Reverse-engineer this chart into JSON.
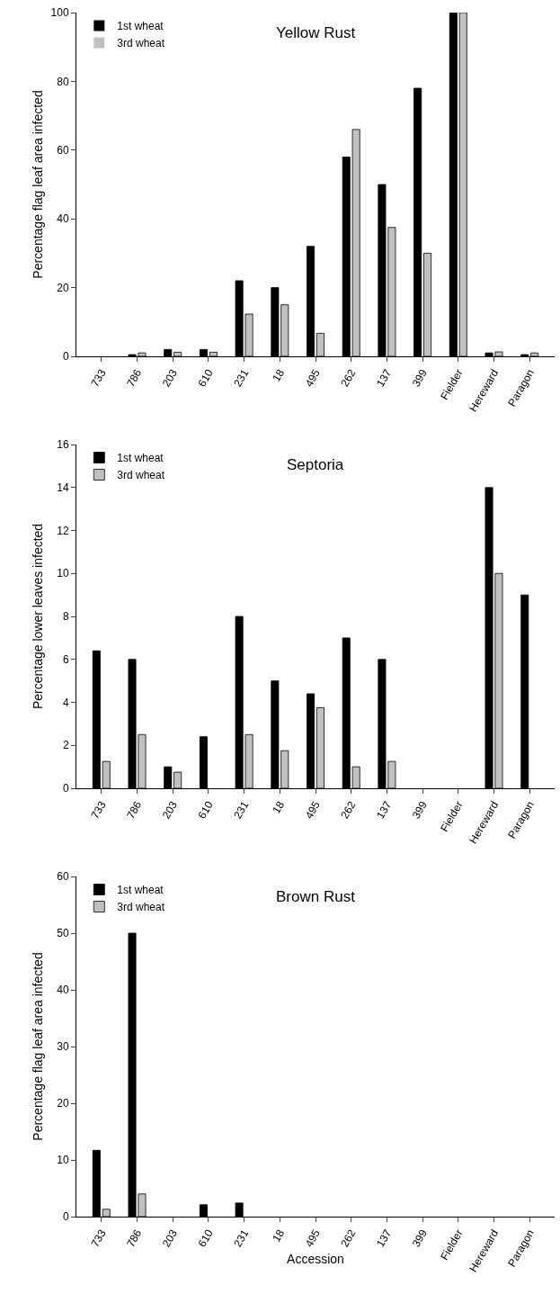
{
  "chart_data": [
    {
      "type": "bar",
      "title": "Yellow Rust",
      "ylabel": "Percentage flag leaf area infected",
      "categories": [
        "733",
        "786",
        "203",
        "610",
        "231",
        "18",
        "495",
        "262",
        "137",
        "399",
        "Fielder",
        "Hereward",
        "Paragon"
      ],
      "series": [
        {
          "name": "1st wheat",
          "color": "#000000",
          "values": [
            0,
            0.5,
            2,
            2,
            22,
            20,
            32,
            58,
            50,
            78,
            100,
            1,
            0.5
          ]
        },
        {
          "name": "3rd wheat",
          "color": "#c0c0c0",
          "values": [
            0,
            1,
            1.2,
            1.2,
            12.3,
            15,
            6.7,
            66,
            37.5,
            30,
            100,
            1.3,
            1
          ]
        }
      ],
      "ylim": [
        0,
        100
      ],
      "yticks": [
        0,
        20,
        40,
        60,
        80,
        100
      ],
      "grid": false,
      "legend": "top left"
    },
    {
      "type": "bar",
      "title": "Septoria",
      "ylabel": "Percentage lower leaves infected",
      "categories": [
        "733",
        "786",
        "203",
        "610",
        "231",
        "18",
        "495",
        "262",
        "137",
        "399",
        "Fielder",
        "Hereward",
        "Paragon"
      ],
      "series": [
        {
          "name": "1st wheat",
          "color": "#000000",
          "values": [
            6.4,
            6,
            1,
            2.4,
            8,
            5,
            4.4,
            7,
            6,
            0,
            0,
            14,
            9
          ]
        },
        {
          "name": "3rd wheat",
          "color": "#c0c0c0",
          "values": [
            1.25,
            2.5,
            0.75,
            0,
            2.5,
            1.75,
            3.75,
            1,
            1.25,
            0,
            0,
            10,
            0
          ]
        }
      ],
      "ylim": [
        0,
        16
      ],
      "yticks": [
        0,
        2,
        4,
        6,
        8,
        10,
        12,
        14,
        16
      ],
      "grid": false,
      "legend": "top left"
    },
    {
      "type": "bar",
      "title": "Brown Rust",
      "xlabel": "Accession",
      "ylabel": "Percentage flag leaf area infected",
      "categories": [
        "733",
        "786",
        "203",
        "610",
        "231",
        "18",
        "495",
        "262",
        "137",
        "399",
        "Fielder",
        "Hereward",
        "Paragon"
      ],
      "series": [
        {
          "name": "1st wheat",
          "color": "#000000",
          "values": [
            11.7,
            50,
            0,
            2.1,
            2.4,
            0,
            0,
            0,
            0,
            0,
            0,
            0,
            0
          ]
        },
        {
          "name": "3rd wheat",
          "color": "#c0c0c0",
          "values": [
            1.3,
            4,
            0,
            0,
            0,
            0,
            0,
            0,
            0,
            0,
            0,
            0,
            0
          ]
        }
      ],
      "ylim": [
        0,
        60
      ],
      "yticks": [
        0,
        10,
        20,
        30,
        40,
        50,
        60
      ],
      "grid": false,
      "legend": "top left"
    }
  ]
}
